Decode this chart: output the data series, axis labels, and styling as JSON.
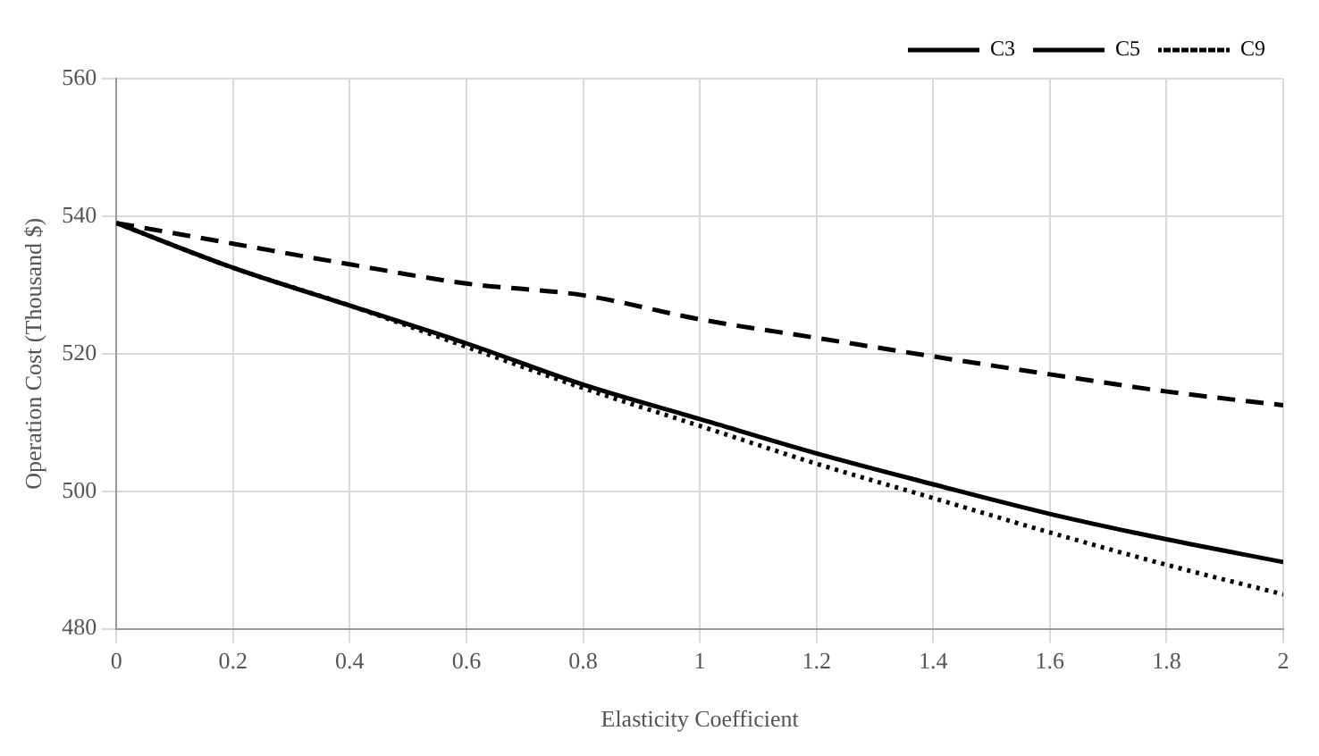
{
  "chart_data": {
    "type": "line",
    "xlabel": "Elasticity Coefficient",
    "ylabel": "Operation Cost (Thousand $)",
    "x": [
      0,
      0.2,
      0.4,
      0.6,
      0.8,
      1,
      1.2,
      1.4,
      1.6,
      1.8,
      2
    ],
    "series": [
      {
        "name": "C3",
        "color": "#000000",
        "line_style": "solid",
        "values": [
          539,
          532.5,
          527,
          521.5,
          515.5,
          510.5,
          505.5,
          501,
          496.7,
          493,
          489.7
        ]
      },
      {
        "name": "C5",
        "color": "#000000",
        "line_style": "dashed",
        "values": [
          539,
          536,
          533,
          530.2,
          528.5,
          525,
          522.3,
          519.6,
          517,
          514.5,
          512.5
        ]
      },
      {
        "name": "C9",
        "color": "#000000",
        "line_style": "dotted",
        "values": [
          539,
          532.5,
          527,
          521,
          515,
          509.5,
          504,
          499,
          494,
          489.3,
          485
        ]
      }
    ],
    "xlim": [
      0,
      2
    ],
    "xticks": [
      0,
      0.2,
      0.4,
      0.6,
      0.8,
      1,
      1.2,
      1.4,
      1.6,
      1.8,
      2
    ],
    "ylim": [
      480,
      560
    ],
    "yticks": [
      480,
      500,
      520,
      540,
      560
    ],
    "grid": true,
    "legend": "top right",
    "marker": "none"
  }
}
